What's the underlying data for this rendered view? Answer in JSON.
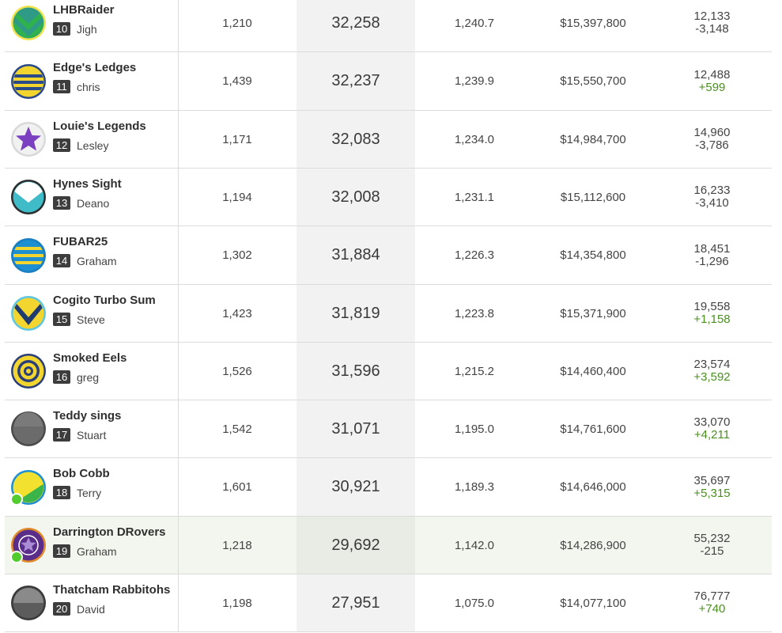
{
  "rows": [
    {
      "team_name": "LHBRaider",
      "position": "10",
      "owner": "Jigh",
      "games": "1,210",
      "points": "32,258",
      "average": "1,240.7",
      "team_value": "$15,397,800",
      "overall_rank": "12,133",
      "rank_change": "-3,148",
      "rank_change_dir": "down",
      "avatar": "green-chevron-icon",
      "online": false
    },
    {
      "team_name": "Edge's Ledges",
      "position": "11",
      "owner": "chris",
      "games": "1,439",
      "points": "32,237",
      "average": "1,239.9",
      "team_value": "$15,550,700",
      "overall_rank": "12,488",
      "rank_change": "+599",
      "rank_change_dir": "up",
      "avatar": "yellow-stripes-icon",
      "online": false
    },
    {
      "team_name": "Louie's Legends",
      "position": "12",
      "owner": "Lesley",
      "games": "1,171",
      "points": "32,083",
      "average": "1,234.0",
      "team_value": "$14,984,700",
      "overall_rank": "14,960",
      "rank_change": "-3,786",
      "rank_change_dir": "down",
      "avatar": "purple-star-icon",
      "online": false
    },
    {
      "team_name": "Hynes Sight",
      "position": "13",
      "owner": "Deano",
      "games": "1,194",
      "points": "32,008",
      "average": "1,231.1",
      "team_value": "$15,112,600",
      "overall_rank": "16,233",
      "rank_change": "-3,410",
      "rank_change_dir": "down",
      "avatar": "cyan-vee-icon",
      "online": false
    },
    {
      "team_name": "FUBAR25",
      "position": "14",
      "owner": "Graham",
      "games": "1,302",
      "points": "31,884",
      "average": "1,226.3",
      "team_value": "$14,354,800",
      "overall_rank": "18,451",
      "rank_change": "-1,296",
      "rank_change_dir": "down",
      "avatar": "blue-yellow-stripes-icon",
      "online": false
    },
    {
      "team_name": "Cogito Turbo Sum",
      "position": "15",
      "owner": "Steve",
      "games": "1,423",
      "points": "31,819",
      "average": "1,223.8",
      "team_value": "$15,371,900",
      "overall_rank": "19,558",
      "rank_change": "+1,158",
      "rank_change_dir": "up",
      "avatar": "yellow-navy-chevron-icon",
      "online": false
    },
    {
      "team_name": "Smoked Eels",
      "position": "16",
      "owner": "greg",
      "games": "1,526",
      "points": "31,596",
      "average": "1,215.2",
      "team_value": "$14,460,400",
      "overall_rank": "23,574",
      "rank_change": "+3,592",
      "rank_change_dir": "up",
      "avatar": "yellow-target-icon",
      "online": false
    },
    {
      "team_name": "Teddy sings",
      "position": "17",
      "owner": "Stuart",
      "games": "1,542",
      "points": "31,071",
      "average": "1,195.0",
      "team_value": "$14,761,600",
      "overall_rank": "33,070",
      "rank_change": "+4,211",
      "rank_change_dir": "up",
      "avatar": "grey-plain-icon",
      "online": false
    },
    {
      "team_name": "Bob Cobb",
      "position": "18",
      "owner": "Terry",
      "games": "1,601",
      "points": "30,921",
      "average": "1,189.3",
      "team_value": "$14,646,000",
      "overall_rank": "35,697",
      "rank_change": "+5,315",
      "rank_change_dir": "up",
      "avatar": "yellow-green-diagonal-icon",
      "online": true
    },
    {
      "team_name": "Darrington DRovers",
      "position": "19",
      "owner": "Graham",
      "games": "1,218",
      "points": "29,692",
      "average": "1,142.0",
      "team_value": "$14,286,900",
      "overall_rank": "55,232",
      "rank_change": "-215",
      "rank_change_dir": "down",
      "avatar": "purple-star-badge-icon",
      "online": true,
      "highlight": true
    },
    {
      "team_name": "Thatcham Rabbitohs",
      "position": "20",
      "owner": "David",
      "games": "1,198",
      "points": "27,951",
      "average": "1,075.0",
      "team_value": "$14,077,100",
      "overall_rank": "76,777",
      "rank_change": "+740",
      "rank_change_dir": "up",
      "avatar": "grey-half-icon",
      "online": false
    }
  ]
}
